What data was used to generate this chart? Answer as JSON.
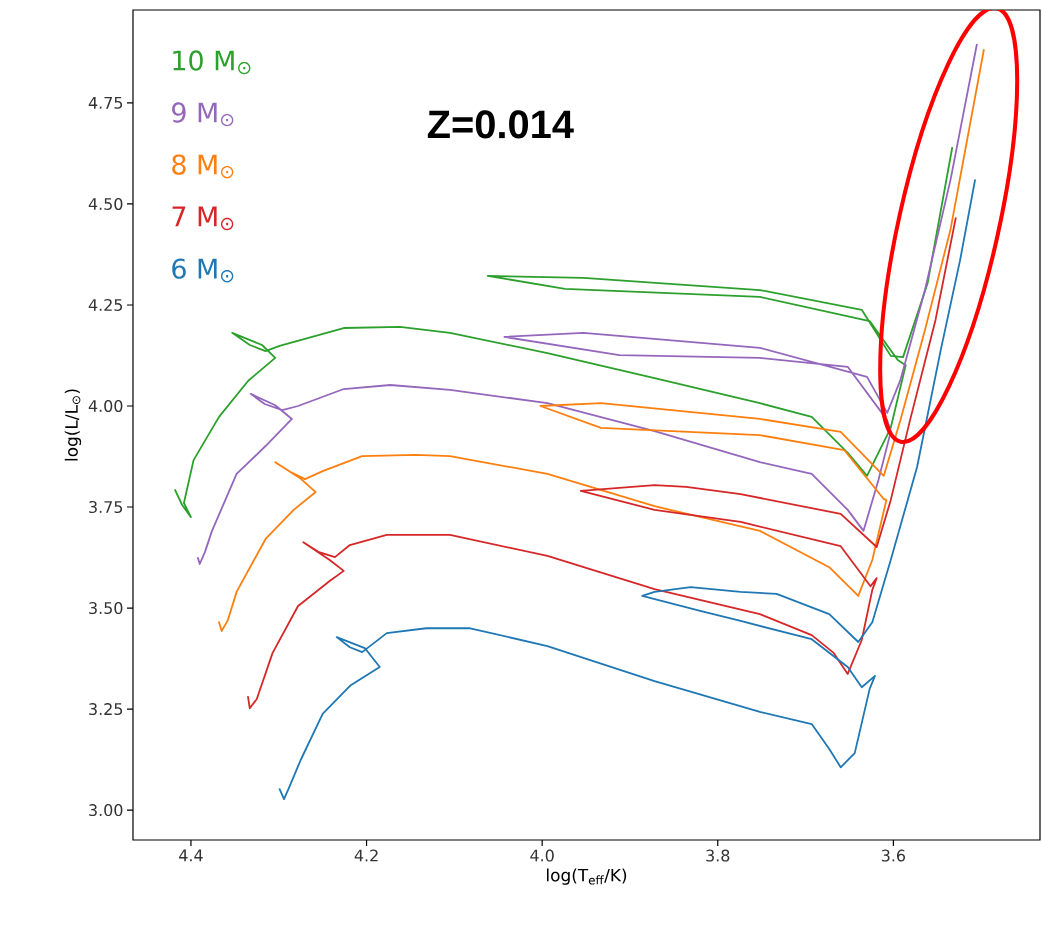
{
  "chart_data": {
    "type": "line",
    "title": "Z=0.014",
    "xlabel": "log(T$_{eff}$/K)",
    "ylabel": "log(L/L$_{⊙}$)",
    "xlim": [
      4.466,
      3.433
    ],
    "ylim": [
      2.926,
      4.98
    ],
    "xticks": [
      4.4,
      4.2,
      {
        "value": 4.0,
        "label": "4.0"
      },
      3.8,
      3.6
    ],
    "yticks": [
      {
        "value": 3.0,
        "label": "3.00"
      },
      {
        "value": 3.25,
        "label": "3.25"
      },
      {
        "value": 3.5,
        "label": "3.50"
      },
      {
        "value": 3.75,
        "label": "3.75"
      },
      {
        "value": 4.0,
        "label": "4.00"
      },
      {
        "value": 4.25,
        "label": "4.25"
      },
      {
        "value": 4.5,
        "label": "4.50"
      },
      {
        "value": 4.75,
        "label": "4.75"
      }
    ],
    "grid": false,
    "legend": "top left",
    "marker": "none",
    "series": [
      {
        "name": "10 M$_{⊙}$",
        "color": "#2ca02c",
        "x": [
          4.418,
          4.41,
          4.4,
          4.408,
          4.397,
          4.368,
          4.335,
          4.304,
          4.319,
          4.353,
          4.333,
          4.315,
          4.299,
          4.226,
          4.162,
          4.105,
          3.994,
          3.872,
          3.752,
          3.693,
          3.652,
          3.63,
          3.603,
          3.586,
          3.595,
          3.627,
          3.752,
          3.974,
          4.062,
          3.953,
          3.752,
          3.636,
          3.603,
          3.589,
          3.561,
          3.533
        ],
        "values": [
          3.792,
          3.755,
          3.725,
          3.76,
          3.866,
          3.973,
          4.062,
          4.119,
          4.151,
          4.181,
          4.151,
          4.136,
          4.149,
          4.193,
          4.196,
          4.181,
          4.131,
          4.069,
          4.007,
          3.973,
          3.884,
          3.827,
          3.946,
          4.101,
          4.114,
          4.21,
          4.27,
          4.29,
          4.322,
          4.317,
          4.287,
          4.238,
          4.124,
          4.121,
          4.304,
          4.639
        ]
      },
      {
        "name": "9 M$_{⊙}$",
        "color": "#9467bd",
        "x": [
          4.392,
          4.39,
          4.384,
          4.376,
          4.348,
          4.315,
          4.285,
          4.304,
          4.332,
          4.316,
          4.296,
          4.278,
          4.226,
          4.173,
          4.105,
          3.994,
          3.872,
          3.752,
          3.693,
          3.652,
          3.634,
          3.617,
          3.603,
          3.607,
          3.652,
          3.752,
          3.912,
          4.043,
          3.953,
          3.752,
          3.63,
          3.607,
          3.592,
          3.564,
          3.535,
          3.505
        ],
        "values": [
          3.624,
          3.609,
          3.639,
          3.691,
          3.832,
          3.901,
          3.968,
          4.002,
          4.03,
          4.005,
          3.99,
          4.0,
          4.042,
          4.052,
          4.04,
          4.007,
          3.938,
          3.861,
          3.832,
          3.743,
          3.691,
          3.817,
          3.936,
          3.965,
          4.097,
          4.119,
          4.126,
          4.171,
          4.181,
          4.144,
          4.072,
          3.983,
          4.064,
          4.287,
          4.559,
          4.894
        ]
      },
      {
        "name": "8 M$_{⊙}$",
        "color": "#ff7f0e",
        "x": [
          4.368,
          4.365,
          4.358,
          4.348,
          4.315,
          4.283,
          4.258,
          4.276,
          4.304,
          4.287,
          4.27,
          4.25,
          4.205,
          4.144,
          4.105,
          3.994,
          3.872,
          3.752,
          3.673,
          3.64,
          3.624,
          3.608,
          3.611,
          3.656,
          3.752,
          3.933,
          4.002,
          3.933,
          3.752,
          3.66,
          3.611,
          3.592,
          3.564,
          3.535,
          3.497
        ],
        "values": [
          3.465,
          3.443,
          3.47,
          3.54,
          3.671,
          3.743,
          3.787,
          3.822,
          3.861,
          3.837,
          3.819,
          3.839,
          3.876,
          3.879,
          3.876,
          3.832,
          3.752,
          3.691,
          3.601,
          3.53,
          3.619,
          3.767,
          3.77,
          3.891,
          3.928,
          3.946,
          4.0,
          4.007,
          3.968,
          3.936,
          3.827,
          3.965,
          4.188,
          4.436,
          4.881
        ]
      },
      {
        "name": "7 M$_{⊙}$",
        "color": "#d62728",
        "x": [
          4.335,
          4.333,
          4.325,
          4.307,
          4.278,
          4.242,
          4.226,
          4.242,
          4.272,
          4.255,
          4.236,
          4.219,
          4.177,
          4.105,
          3.994,
          3.872,
          3.752,
          3.693,
          3.668,
          3.652,
          3.636,
          3.624,
          3.619,
          3.626,
          3.66,
          3.774,
          3.872,
          3.956,
          3.872,
          3.836,
          3.774,
          3.66,
          3.619,
          3.603,
          3.581,
          3.552,
          3.529
        ],
        "values": [
          3.28,
          3.252,
          3.275,
          3.389,
          3.505,
          3.567,
          3.592,
          3.619,
          3.663,
          3.639,
          3.626,
          3.656,
          3.681,
          3.681,
          3.629,
          3.547,
          3.485,
          3.433,
          3.389,
          3.337,
          3.421,
          3.545,
          3.574,
          3.554,
          3.653,
          3.713,
          3.743,
          3.79,
          3.804,
          3.8,
          3.782,
          3.733,
          3.651,
          3.767,
          3.965,
          4.213,
          4.465
        ]
      },
      {
        "name": "6 M$_{⊙}$",
        "color": "#1f77b4",
        "x": [
          4.299,
          4.294,
          4.288,
          4.275,
          4.25,
          4.218,
          4.185,
          4.202,
          4.234,
          4.219,
          4.205,
          4.177,
          4.132,
          4.082,
          3.994,
          3.872,
          3.752,
          3.693,
          3.673,
          3.66,
          3.644,
          3.627,
          3.621,
          3.636,
          3.652,
          3.693,
          3.774,
          3.82,
          3.886,
          3.872,
          3.831,
          3.774,
          3.733,
          3.673,
          3.64,
          3.624,
          3.603,
          3.573,
          3.546,
          3.524,
          3.507
        ],
        "values": [
          3.052,
          3.027,
          3.057,
          3.124,
          3.238,
          3.309,
          3.354,
          3.401,
          3.428,
          3.403,
          3.391,
          3.438,
          3.45,
          3.45,
          3.406,
          3.319,
          3.243,
          3.213,
          3.151,
          3.106,
          3.141,
          3.3,
          3.332,
          3.304,
          3.354,
          3.423,
          3.468,
          3.493,
          3.53,
          3.54,
          3.552,
          3.54,
          3.535,
          3.485,
          3.416,
          3.465,
          3.619,
          3.849,
          4.139,
          4.361,
          4.559
        ]
      }
    ]
  }
}
